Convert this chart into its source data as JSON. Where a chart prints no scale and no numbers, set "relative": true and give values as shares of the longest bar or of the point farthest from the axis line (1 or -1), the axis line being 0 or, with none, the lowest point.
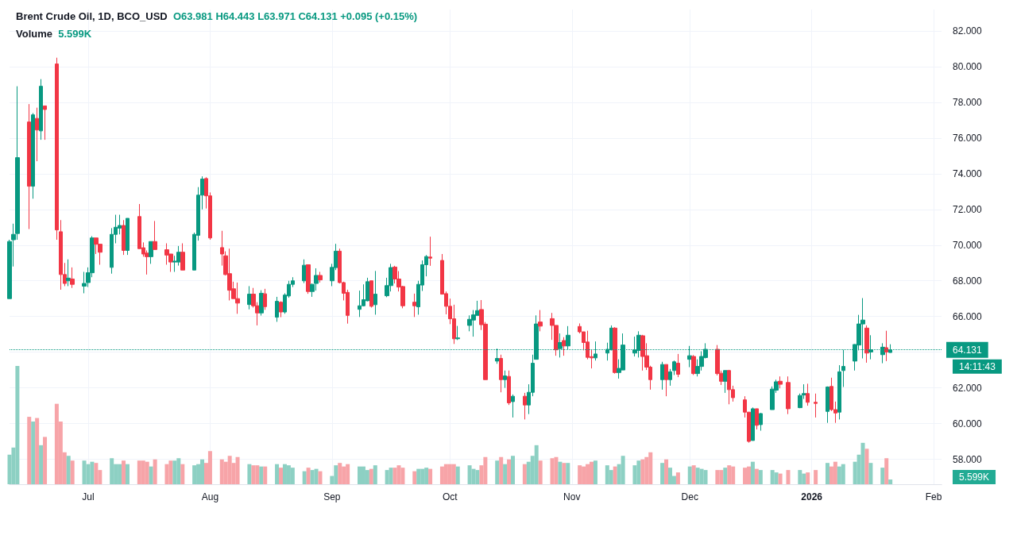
{
  "chart_data": [
    {
      "type": "candlestick",
      "title": "Brent Crude Oil, 1D, BCO_USD",
      "subtitle": "O63.981 H64.443 L63.971 C64.131 +0.095 (+0.15%)",
      "x": [
        "2025-06-11",
        "2025-06-12",
        "2025-06-13",
        "2025-06-16",
        "2025-06-17",
        "2025-06-18",
        "2025-06-19",
        "2025-06-20",
        "2025-06-23",
        "2025-06-24",
        "2025-06-25",
        "2025-06-26",
        "2025-06-27",
        "2025-06-30",
        "2025-07-01",
        "2025-07-02",
        "2025-07-03",
        "2025-07-04",
        "2025-07-07",
        "2025-07-08",
        "2025-07-09",
        "2025-07-10",
        "2025-07-11",
        "2025-07-14",
        "2025-07-15",
        "2025-07-16",
        "2025-07-17",
        "2025-07-18",
        "2025-07-21",
        "2025-07-22",
        "2025-07-23",
        "2025-07-24",
        "2025-07-25",
        "2025-07-28",
        "2025-07-29",
        "2025-07-30",
        "2025-07-31",
        "2025-08-01",
        "2025-08-04",
        "2025-08-05",
        "2025-08-06",
        "2025-08-07",
        "2025-08-08",
        "2025-08-11",
        "2025-08-12",
        "2025-08-13",
        "2025-08-14",
        "2025-08-15",
        "2025-08-18",
        "2025-08-19",
        "2025-08-20",
        "2025-08-21",
        "2025-08-22",
        "2025-08-25",
        "2025-08-26",
        "2025-08-27",
        "2025-08-28",
        "2025-08-29",
        "2025-09-01",
        "2025-09-02",
        "2025-09-03",
        "2025-09-04",
        "2025-09-05",
        "2025-09-08",
        "2025-09-09",
        "2025-09-10",
        "2025-09-11",
        "2025-09-12",
        "2025-09-15",
        "2025-09-16",
        "2025-09-17",
        "2025-09-18",
        "2025-09-19",
        "2025-09-22",
        "2025-09-23",
        "2025-09-24",
        "2025-09-25",
        "2025-09-26",
        "2025-09-29",
        "2025-09-30",
        "2025-10-01",
        "2025-10-02",
        "2025-10-03",
        "2025-10-06",
        "2025-10-07",
        "2025-10-08",
        "2025-10-09",
        "2025-10-10",
        "2025-10-13",
        "2025-10-14",
        "2025-10-15",
        "2025-10-16",
        "2025-10-17",
        "2025-10-20",
        "2025-10-21",
        "2025-10-22",
        "2025-10-23",
        "2025-10-24",
        "2025-10-27",
        "2025-10-28",
        "2025-10-29",
        "2025-10-30",
        "2025-10-31",
        "2025-11-03",
        "2025-11-04",
        "2025-11-05",
        "2025-11-06",
        "2025-11-07",
        "2025-11-10",
        "2025-11-11",
        "2025-11-12",
        "2025-11-13",
        "2025-11-14",
        "2025-11-17",
        "2025-11-18",
        "2025-11-19",
        "2025-11-20",
        "2025-11-21",
        "2025-11-24",
        "2025-11-25",
        "2025-11-26",
        "2025-11-27",
        "2025-11-28",
        "2025-12-01",
        "2025-12-02",
        "2025-12-03",
        "2025-12-04",
        "2025-12-05",
        "2025-12-08",
        "2025-12-09",
        "2025-12-10",
        "2025-12-11",
        "2025-12-12",
        "2025-12-15",
        "2025-12-16",
        "2025-12-17",
        "2025-12-18",
        "2025-12-19",
        "2025-12-22",
        "2025-12-23",
        "2025-12-24",
        "2025-12-26",
        "2025-12-29",
        "2025-12-30",
        "2025-12-31",
        "2026-01-02",
        "2026-01-05",
        "2026-01-06",
        "2026-01-07",
        "2026-01-08",
        "2026-01-09",
        "2026-01-12",
        "2026-01-13",
        "2026-01-14",
        "2026-01-15",
        "2026-01-16",
        "2026-01-19",
        "2026-01-20",
        "2026-01-21"
      ],
      "ohlc": [
        [
          67.0,
          70.3,
          67.0,
          70.2
        ],
        [
          70.3,
          71.2,
          68.8,
          70.6
        ],
        [
          70.65,
          78.9,
          70.3,
          74.9
        ],
        [
          76.9,
          77.9,
          70.9,
          73.3
        ],
        [
          73.3,
          77.4,
          72.6,
          77.3
        ],
        [
          77.1,
          77.7,
          74.7,
          76.45
        ],
        [
          76.4,
          79.3,
          75.9,
          78.9
        ],
        [
          77.8,
          77.8,
          75.9,
          77.6
        ],
        [
          80.15,
          80.5,
          70.3,
          70.85
        ],
        [
          70.75,
          71.4,
          67.5,
          68.35
        ],
        [
          68.35,
          69.0,
          67.7,
          67.85
        ],
        [
          68.0,
          69.2,
          67.7,
          68.15
        ],
        [
          68.1,
          68.75,
          67.6,
          67.8
        ],
        [
          67.7,
          68.5,
          67.3,
          67.85
        ],
        [
          67.9,
          68.75,
          67.65,
          68.45
        ],
        [
          68.45,
          70.5,
          68.2,
          70.4
        ],
        [
          70.4,
          70.4,
          69.5,
          70.05
        ],
        [
          70.05,
          70.05,
          68.9,
          69.6
        ],
        [
          68.75,
          70.95,
          68.4,
          70.6
        ],
        [
          70.6,
          71.7,
          70.1,
          71.0
        ],
        [
          70.95,
          71.7,
          70.6,
          71.1
        ],
        [
          71.1,
          71.4,
          69.45,
          69.7
        ],
        [
          69.7,
          71.5,
          69.45,
          71.5
        ],
        [
          71.6,
          72.3,
          69.8,
          69.8
        ],
        [
          69.85,
          70.15,
          69.35,
          69.5
        ],
        [
          69.55,
          69.7,
          68.35,
          69.35
        ],
        [
          69.35,
          70.2,
          68.95,
          70.2
        ],
        [
          70.2,
          71.35,
          69.75,
          69.75
        ],
        [
          69.74,
          70.1,
          68.9,
          69.44
        ],
        [
          69.5,
          69.5,
          68.5,
          69.05
        ],
        [
          69.05,
          69.4,
          68.5,
          69.1
        ],
        [
          69.05,
          69.95,
          68.85,
          69.6
        ],
        [
          69.6,
          70.1,
          68.6,
          68.6
        ],
        [
          68.6,
          70.7,
          68.6,
          70.6
        ],
        [
          70.55,
          73.25,
          70.25,
          72.8
        ],
        [
          72.8,
          73.85,
          72.0,
          73.7
        ],
        [
          73.73,
          73.8,
          72.05,
          72.76
        ],
        [
          72.76,
          72.95,
          70.3,
          70.4
        ],
        [
          69.86,
          70.8,
          68.85,
          69.5
        ],
        [
          69.4,
          69.65,
          68.3,
          68.35
        ],
        [
          68.4,
          69.8,
          66.9,
          67.47
        ],
        [
          67.55,
          67.95,
          67.0,
          67.0
        ],
        [
          67.0,
          67.9,
          66.15,
          66.75
        ],
        [
          66.67,
          67.7,
          66.4,
          67.25
        ],
        [
          67.25,
          67.6,
          66.5,
          66.6
        ],
        [
          66.6,
          66.8,
          65.5,
          66.2
        ],
        [
          66.2,
          67.47,
          66.05,
          67.3
        ],
        [
          67.27,
          67.55,
          66.37,
          66.55
        ],
        [
          65.96,
          67.1,
          65.7,
          66.85
        ],
        [
          66.8,
          66.85,
          65.96,
          66.25
        ],
        [
          66.25,
          67.3,
          66.15,
          67.2
        ],
        [
          67.15,
          68.0,
          67.05,
          67.8
        ],
        [
          67.8,
          68.2,
          67.65,
          68.0
        ],
        [
          68.0,
          69.2,
          67.87,
          68.87
        ],
        [
          68.9,
          68.9,
          67.27,
          67.4
        ],
        [
          67.4,
          67.85,
          67.1,
          67.8
        ],
        [
          67.85,
          68.7,
          67.45,
          68.3
        ],
        [
          68.3,
          68.5,
          67.9,
          68.05
        ],
        [
          68.0,
          68.95,
          67.7,
          68.75
        ],
        [
          68.74,
          70.07,
          68.6,
          69.66
        ],
        [
          69.66,
          69.8,
          67.85,
          67.9
        ],
        [
          67.9,
          67.95,
          66.9,
          67.3
        ],
        [
          67.35,
          67.5,
          65.6,
          66.06
        ],
        [
          66.4,
          67.45,
          65.97,
          66.6
        ],
        [
          66.6,
          67.8,
          66.57,
          66.94
        ],
        [
          66.88,
          68.17,
          66.85,
          67.95
        ],
        [
          68.0,
          68.0,
          66.5,
          66.57
        ],
        [
          66.66,
          68.55,
          66.1,
          67.25
        ],
        [
          67.16,
          68.17,
          67.08,
          67.73
        ],
        [
          67.73,
          68.95,
          67.4,
          68.74
        ],
        [
          68.77,
          68.84,
          67.85,
          68.1
        ],
        [
          68.1,
          68.54,
          67.4,
          67.65
        ],
        [
          67.68,
          67.72,
          66.46,
          66.6
        ],
        [
          66.8,
          67.28,
          65.97,
          66.6
        ],
        [
          66.54,
          68.0,
          66.1,
          67.8
        ],
        [
          67.76,
          69.14,
          67.43,
          68.9
        ],
        [
          68.9,
          69.44,
          68.25,
          69.36
        ],
        [
          69.33,
          70.47,
          68.84,
          69.27
        ],
        [
          69.14,
          69.5,
          67.25,
          67.25
        ],
        [
          67.28,
          67.4,
          66.12,
          66.57
        ],
        [
          66.57,
          67.0,
          65.57,
          65.87
        ],
        [
          65.87,
          66.66,
          64.46,
          64.75
        ],
        [
          64.75,
          65.47,
          64.68,
          64.8
        ],
        [
          65.5,
          66.06,
          65.17,
          65.84
        ],
        [
          65.8,
          66.36,
          64.87,
          66.09
        ],
        [
          66.06,
          66.88,
          66.06,
          66.33
        ],
        [
          66.39,
          66.92,
          65.24,
          65.54
        ],
        [
          65.57,
          65.69,
          62.46,
          62.46
        ],
        [
          63.5,
          64.2,
          63.35,
          63.65
        ],
        [
          63.65,
          63.86,
          61.75,
          62.46
        ],
        [
          62.46,
          62.97,
          62.0,
          62.67
        ],
        [
          62.64,
          62.97,
          61.04,
          61.16
        ],
        [
          61.23,
          61.63,
          60.34,
          61.53
        ],
        [
          61.53,
          61.72,
          60.23,
          61.04
        ],
        [
          61.04,
          62.2,
          60.53,
          61.75
        ],
        [
          61.75,
          63.86,
          61.53,
          63.38
        ],
        [
          63.6,
          66.06,
          63.6,
          65.58
        ],
        [
          65.69,
          66.36,
          65.17,
          65.46
        ],
        [
          65.88,
          66.2,
          64.69,
          65.5
        ],
        [
          65.5,
          65.5,
          63.8,
          64.13
        ],
        [
          64.2,
          65.05,
          63.7,
          64.54
        ],
        [
          64.65,
          64.84,
          63.8,
          64.35
        ],
        [
          64.35,
          65.46,
          64.13,
          64.95
        ],
        [
          65.44,
          65.61,
          65.05,
          65.14
        ],
        [
          65.14,
          65.14,
          64.1,
          64.54
        ],
        [
          64.57,
          65.2,
          63.6,
          63.71
        ],
        [
          63.75,
          64.13,
          63.09,
          63.68
        ],
        [
          63.68,
          64.6,
          63.53,
          63.9
        ],
        [
          63.95,
          64.53,
          63.53,
          64.16
        ],
        [
          64.13,
          65.5,
          64.1,
          65.35
        ],
        [
          65.35,
          65.4,
          62.8,
          62.86
        ],
        [
          62.86,
          63.6,
          62.52,
          63.09
        ],
        [
          63.0,
          65.05,
          63.0,
          64.4
        ],
        [
          63.95,
          64.87,
          63.76,
          64.13
        ],
        [
          64.1,
          65.17,
          63.7,
          64.95
        ],
        [
          64.92,
          64.97,
          62.97,
          63.76
        ],
        [
          63.8,
          64.5,
          63.0,
          63.16
        ],
        [
          63.16,
          63.24,
          61.9,
          62.46
        ],
        [
          62.46,
          63.46,
          61.9,
          63.31
        ],
        [
          63.31,
          63.31,
          61.53,
          62.46
        ],
        [
          62.46,
          63.06,
          62.12,
          62.9
        ],
        [
          62.97,
          63.53,
          62.72,
          63.46
        ],
        [
          63.38,
          63.9,
          62.6,
          62.76
        ],
        [
          63.6,
          64.35,
          63.16,
          63.8
        ],
        [
          63.76,
          63.84,
          62.72,
          62.8
        ],
        [
          62.8,
          63.6,
          62.64,
          63.2
        ],
        [
          63.2,
          64.05,
          62.97,
          63.76
        ],
        [
          63.7,
          64.5,
          63.65,
          64.16
        ],
        [
          64.16,
          64.4,
          62.7,
          62.8
        ],
        [
          62.82,
          62.97,
          62.16,
          62.37
        ],
        [
          62.37,
          62.97,
          61.72,
          62.97
        ],
        [
          62.97,
          63.01,
          61.08,
          61.9
        ],
        [
          61.9,
          62.12,
          61.23,
          61.45
        ],
        [
          61.33,
          61.53,
          60.34,
          60.64
        ],
        [
          60.64,
          60.64,
          58.93,
          59.0
        ],
        [
          59.05,
          60.9,
          59.05,
          60.83
        ],
        [
          60.83,
          60.83,
          59.67,
          59.9
        ],
        [
          59.94,
          60.59,
          59.6,
          60.56
        ],
        [
          60.78,
          62.08,
          60.78,
          61.93
        ],
        [
          61.87,
          62.46,
          61.72,
          62.34
        ],
        [
          62.37,
          62.64,
          61.97,
          62.2
        ],
        [
          62.3,
          62.64,
          60.53,
          60.83
        ],
        [
          60.89,
          61.68,
          60.86,
          61.57
        ],
        [
          61.6,
          62.2,
          61.38,
          61.68
        ],
        [
          61.68,
          62.23,
          61.0,
          61.19
        ],
        [
          61.19,
          61.68,
          60.34,
          61.13
        ],
        [
          60.68,
          62.08,
          60.04,
          62.05
        ],
        [
          62.08,
          62.57,
          60.7,
          60.78
        ],
        [
          60.78,
          61.23,
          60.04,
          60.59
        ],
        [
          60.64,
          63.27,
          60.23,
          62.9
        ],
        [
          62.97,
          64.13,
          62.05,
          63.2
        ],
        [
          63.5,
          64.45,
          62.97,
          64.43
        ],
        [
          64.4,
          66.09,
          64.1,
          65.58
        ],
        [
          65.58,
          67.03,
          63.65,
          65.8
        ],
        [
          65.35,
          65.5,
          63.41,
          63.95
        ],
        [
          64.01,
          64.95,
          63.6,
          64.13
        ],
        [
          63.86,
          64.5,
          63.38,
          64.28
        ],
        [
          64.25,
          65.2,
          63.5,
          64.01
        ],
        [
          63.981,
          64.443,
          63.971,
          64.131
        ]
      ],
      "colors": [
        "#089981",
        "#089981",
        "#089981",
        "#f23645",
        "#089981",
        "#f23645",
        "#089981",
        "#f23645",
        "#f23645",
        "#f23645",
        "#f23645",
        "#089981",
        "#f23645",
        "#089981",
        "#089981",
        "#089981",
        "#f23645",
        "#f23645",
        "#089981",
        "#089981",
        "#089981",
        "#f23645",
        "#089981",
        "#f23645",
        "#f23645",
        "#f23645",
        "#089981",
        "#f23645",
        "#f23645",
        "#f23645",
        "#089981",
        "#089981",
        "#f23645",
        "#089981",
        "#089981",
        "#089981",
        "#f23645",
        "#f23645",
        "#f23645",
        "#f23645",
        "#f23645",
        "#f23645",
        "#f23645",
        "#089981",
        "#f23645",
        "#f23645",
        "#089981",
        "#f23645",
        "#089981",
        "#f23645",
        "#089981",
        "#089981",
        "#089981",
        "#089981",
        "#f23645",
        "#089981",
        "#089981",
        "#f23645",
        "#089981",
        "#089981",
        "#f23645",
        "#f23645",
        "#f23645",
        "#089981",
        "#089981",
        "#089981",
        "#f23645",
        "#089981",
        "#089981",
        "#089981",
        "#f23645",
        "#f23645",
        "#f23645",
        "#f23645",
        "#089981",
        "#089981",
        "#089981",
        "#f23645",
        "#f23645",
        "#f23645",
        "#f23645",
        "#f23645",
        "#089981",
        "#089981",
        "#089981",
        "#089981",
        "#f23645",
        "#f23645",
        "#089981",
        "#f23645",
        "#089981",
        "#f23645",
        "#089981",
        "#f23645",
        "#089981",
        "#089981",
        "#089981",
        "#f23645",
        "#f23645",
        "#f23645",
        "#089981",
        "#f23645",
        "#089981",
        "#f23645",
        "#f23645",
        "#f23645",
        "#f23645",
        "#089981",
        "#089981",
        "#089981",
        "#f23645",
        "#089981",
        "#089981",
        "#089981",
        "#089981",
        "#f23645",
        "#f23645",
        "#f23645",
        "#089981",
        "#f23645",
        "#089981",
        "#089981",
        "#f23645",
        "#089981",
        "#f23645",
        "#089981",
        "#089981",
        "#089981",
        "#f23645",
        "#f23645",
        "#089981",
        "#f23645",
        "#f23645",
        "#f23645",
        "#f23645",
        "#089981",
        "#f23645",
        "#089981",
        "#089981",
        "#089981",
        "#f23645",
        "#f23645",
        "#089981",
        "#089981",
        "#f23645",
        "#f23645",
        "#089981",
        "#f23645",
        "#f23645",
        "#089981",
        "#089981",
        "#089981",
        "#089981",
        "#089981",
        "#f23645",
        "#089981",
        "#089981",
        "#f23645",
        "#089981"
      ],
      "xlim": [
        "2025-06-11",
        "2026-02-03"
      ],
      "xticks": [
        {
          "value": "2025-07-01",
          "label": "Jul"
        },
        {
          "value": "2025-08-01",
          "label": "Aug"
        },
        {
          "value": "2025-09-01",
          "label": "Sep"
        },
        {
          "value": "2025-10-01",
          "label": "Oct"
        },
        {
          "value": "2025-11-01",
          "label": "Nov"
        },
        {
          "value": "2025-12-01",
          "label": "Dec"
        },
        {
          "value": "2026-01-01",
          "label": "2026"
        },
        {
          "value": "2026-02-01",
          "label": "Feb"
        }
      ],
      "ylim": [
        56.6,
        83.2
      ],
      "yticks": [
        {
          "value": 58,
          "label": "58.000"
        },
        {
          "value": 60,
          "label": "60.000"
        },
        {
          "value": 62,
          "label": "62.000"
        },
        {
          "value": 64,
          "label": null
        },
        {
          "value": 66,
          "label": "66.000"
        },
        {
          "value": 68,
          "label": "68.000"
        },
        {
          "value": 70,
          "label": "70.000"
        },
        {
          "value": 72,
          "label": "72.000"
        },
        {
          "value": 74,
          "label": "74.000"
        },
        {
          "value": 76,
          "label": "76.000"
        },
        {
          "value": 78,
          "label": "78.000"
        },
        {
          "value": 80,
          "label": "80.000"
        },
        {
          "value": 82,
          "label": "82.000"
        }
      ],
      "ref_lines": [
        {
          "axis": "y",
          "value": 64.131,
          "label": "64.131",
          "color": "#089981",
          "line_style": "dotted"
        }
      ],
      "annotations": [
        "14:11:43"
      ],
      "grid": true
    },
    {
      "type": "bar",
      "title": "Volume",
      "subtitle": "5.599K",
      "relative": true,
      "annotations": [
        "5.599K"
      ],
      "x": [
        "2025-06-11",
        "2025-06-12",
        "2025-06-13",
        "2025-06-16",
        "2025-06-17",
        "2025-06-18",
        "2025-06-19",
        "2025-06-20",
        "2025-06-23",
        "2025-06-24",
        "2025-06-25",
        "2025-06-26",
        "2025-06-27",
        "2025-06-30",
        "2025-07-01",
        "2025-07-02",
        "2025-07-03",
        "2025-07-04",
        "2025-07-07",
        "2025-07-08",
        "2025-07-09",
        "2025-07-10",
        "2025-07-11",
        "2025-07-14",
        "2025-07-15",
        "2025-07-16",
        "2025-07-17",
        "2025-07-18",
        "2025-07-21",
        "2025-07-22",
        "2025-07-23",
        "2025-07-24",
        "2025-07-25",
        "2025-07-28",
        "2025-07-29",
        "2025-07-30",
        "2025-07-31",
        "2025-08-01",
        "2025-08-04",
        "2025-08-05",
        "2025-08-06",
        "2025-08-07",
        "2025-08-08",
        "2025-08-11",
        "2025-08-12",
        "2025-08-13",
        "2025-08-14",
        "2025-08-15",
        "2025-08-18",
        "2025-08-19",
        "2025-08-20",
        "2025-08-21",
        "2025-08-22",
        "2025-08-25",
        "2025-08-26",
        "2025-08-27",
        "2025-08-28",
        "2025-08-29",
        "2025-09-01",
        "2025-09-02",
        "2025-09-03",
        "2025-09-04",
        "2025-09-05",
        "2025-09-08",
        "2025-09-09",
        "2025-09-10",
        "2025-09-11",
        "2025-09-12",
        "2025-09-15",
        "2025-09-16",
        "2025-09-17",
        "2025-09-18",
        "2025-09-19",
        "2025-09-22",
        "2025-09-23",
        "2025-09-24",
        "2025-09-25",
        "2025-09-26",
        "2025-09-29",
        "2025-09-30",
        "2025-10-01",
        "2025-10-02",
        "2025-10-03",
        "2025-10-06",
        "2025-10-07",
        "2025-10-08",
        "2025-10-09",
        "2025-10-10",
        "2025-10-13",
        "2025-10-14",
        "2025-10-15",
        "2025-10-16",
        "2025-10-17",
        "2025-10-20",
        "2025-10-21",
        "2025-10-22",
        "2025-10-23",
        "2025-10-24",
        "2025-10-27",
        "2025-10-28",
        "2025-10-29",
        "2025-10-30",
        "2025-10-31",
        "2025-11-03",
        "2025-11-04",
        "2025-11-05",
        "2025-11-06",
        "2025-11-07",
        "2025-11-10",
        "2025-11-11",
        "2025-11-12",
        "2025-11-13",
        "2025-11-14",
        "2025-11-17",
        "2025-11-18",
        "2025-11-19",
        "2025-11-20",
        "2025-11-21",
        "2025-11-24",
        "2025-11-25",
        "2025-11-26",
        "2025-11-27",
        "2025-11-28",
        "2025-12-01",
        "2025-12-02",
        "2025-12-03",
        "2025-12-04",
        "2025-12-05",
        "2025-12-08",
        "2025-12-09",
        "2025-12-10",
        "2025-12-11",
        "2025-12-12",
        "2025-12-15",
        "2025-12-16",
        "2025-12-17",
        "2025-12-18",
        "2025-12-19",
        "2025-12-22",
        "2025-12-23",
        "2025-12-24",
        "2025-12-26",
        "2025-12-29",
        "2025-12-30",
        "2025-12-31",
        "2026-01-02",
        "2026-01-05",
        "2026-01-06",
        "2026-01-07",
        "2026-01-08",
        "2026-01-09",
        "2026-01-12",
        "2026-01-13",
        "2026-01-14",
        "2026-01-15",
        "2026-01-16",
        "2026-01-19",
        "2026-01-20",
        "2026-01-21"
      ],
      "xlim": [
        "2025-06-11",
        "2026-02-03"
      ],
      "values": [
        0.25,
        0.31,
        1,
        0.57,
        0.53,
        0.56,
        0.33,
        0.4,
        0.68,
        0.53,
        0.27,
        0.24,
        0.2,
        0.2,
        0.17,
        0.19,
        0.18,
        0.12,
        0.22,
        0.17,
        0.17,
        0.2,
        0.17,
        0.2,
        0.2,
        0.19,
        0.15,
        0.21,
        0.17,
        0.2,
        0.2,
        0.22,
        0.17,
        0.16,
        0.17,
        0.21,
        0.18,
        0.28,
        0.21,
        0.19,
        0.24,
        0.18,
        0.23,
        0.17,
        0.16,
        0.16,
        0.15,
        0.15,
        0.17,
        0.14,
        0.17,
        0.16,
        0.14,
        0.11,
        0.14,
        0.12,
        0.13,
        0.11,
        0.07,
        0.16,
        0.18,
        0.15,
        0.17,
        0.15,
        0.15,
        0.12,
        0.13,
        0.16,
        0.12,
        0.14,
        0.14,
        0.16,
        0.14,
        0.11,
        0.13,
        0.13,
        0.14,
        0.13,
        0.15,
        0.17,
        0.17,
        0.17,
        0.15,
        0.16,
        0.13,
        0.12,
        0.16,
        0.23,
        0.2,
        0.23,
        0.17,
        0.21,
        0.24,
        0.17,
        0.19,
        0.24,
        0.33,
        0.2,
        0.22,
        0.23,
        0.19,
        0.18,
        0.18,
        0.16,
        0.15,
        0.17,
        0.19,
        0.2,
        0.16,
        0.12,
        0.15,
        0.17,
        0.24,
        0.16,
        0.2,
        0.21,
        0.23,
        0.27,
        0.18,
        0.21,
        0.14,
        0.07,
        0.1,
        0.15,
        0.16,
        0.14,
        0.13,
        0.12,
        0.12,
        0.12,
        0.14,
        0.16,
        0.15,
        0.14,
        0.15,
        0.19,
        0.13,
        0.12,
        0.12,
        0.1,
        0.09,
        0.12,
        0.12,
        0.09,
        0.1,
        0.12,
        0.18,
        0.15,
        0.19,
        0.15,
        0.17,
        0.19,
        0.25,
        0.35,
        0.3,
        0.18,
        0.14,
        0.22,
        0.04
      ],
      "colors": [
        "#8dd0c3",
        "#8dd0c3",
        "#8dd0c3",
        "#f7a4a8",
        "#8dd0c3",
        "#f7a4a8",
        "#8dd0c3",
        "#f7a4a8",
        "#f7a4a8",
        "#f7a4a8",
        "#f7a4a8",
        "#8dd0c3",
        "#f7a4a8",
        "#8dd0c3",
        "#8dd0c3",
        "#8dd0c3",
        "#f7a4a8",
        "#f7a4a8",
        "#8dd0c3",
        "#8dd0c3",
        "#8dd0c3",
        "#f7a4a8",
        "#8dd0c3",
        "#f7a4a8",
        "#f7a4a8",
        "#f7a4a8",
        "#8dd0c3",
        "#f7a4a8",
        "#f7a4a8",
        "#f7a4a8",
        "#8dd0c3",
        "#8dd0c3",
        "#f7a4a8",
        "#8dd0c3",
        "#8dd0c3",
        "#8dd0c3",
        "#f7a4a8",
        "#f7a4a8",
        "#f7a4a8",
        "#f7a4a8",
        "#f7a4a8",
        "#f7a4a8",
        "#f7a4a8",
        "#8dd0c3",
        "#f7a4a8",
        "#f7a4a8",
        "#8dd0c3",
        "#f7a4a8",
        "#8dd0c3",
        "#f7a4a8",
        "#8dd0c3",
        "#8dd0c3",
        "#8dd0c3",
        "#8dd0c3",
        "#f7a4a8",
        "#8dd0c3",
        "#8dd0c3",
        "#f7a4a8",
        "#8dd0c3",
        "#8dd0c3",
        "#f7a4a8",
        "#f7a4a8",
        "#f7a4a8",
        "#8dd0c3",
        "#8dd0c3",
        "#8dd0c3",
        "#f7a4a8",
        "#8dd0c3",
        "#8dd0c3",
        "#8dd0c3",
        "#f7a4a8",
        "#f7a4a8",
        "#f7a4a8",
        "#f7a4a8",
        "#8dd0c3",
        "#8dd0c3",
        "#8dd0c3",
        "#f7a4a8",
        "#f7a4a8",
        "#f7a4a8",
        "#f7a4a8",
        "#f7a4a8",
        "#8dd0c3",
        "#8dd0c3",
        "#8dd0c3",
        "#8dd0c3",
        "#f7a4a8",
        "#f7a4a8",
        "#8dd0c3",
        "#f7a4a8",
        "#8dd0c3",
        "#f7a4a8",
        "#8dd0c3",
        "#f7a4a8",
        "#8dd0c3",
        "#8dd0c3",
        "#8dd0c3",
        "#f7a4a8",
        "#f7a4a8",
        "#f7a4a8",
        "#8dd0c3",
        "#f7a4a8",
        "#8dd0c3",
        "#f7a4a8",
        "#f7a4a8",
        "#f7a4a8",
        "#f7a4a8",
        "#8dd0c3",
        "#8dd0c3",
        "#8dd0c3",
        "#f7a4a8",
        "#8dd0c3",
        "#8dd0c3",
        "#8dd0c3",
        "#8dd0c3",
        "#f7a4a8",
        "#f7a4a8",
        "#f7a4a8",
        "#8dd0c3",
        "#f7a4a8",
        "#8dd0c3",
        "#8dd0c3",
        "#f7a4a8",
        "#8dd0c3",
        "#f7a4a8",
        "#8dd0c3",
        "#8dd0c3",
        "#8dd0c3",
        "#f7a4a8",
        "#f7a4a8",
        "#8dd0c3",
        "#f7a4a8",
        "#f7a4a8",
        "#f7a4a8",
        "#f7a4a8",
        "#8dd0c3",
        "#f7a4a8",
        "#8dd0c3",
        "#8dd0c3",
        "#8dd0c3",
        "#f7a4a8",
        "#f7a4a8",
        "#8dd0c3",
        "#8dd0c3",
        "#f7a4a8",
        "#f7a4a8",
        "#8dd0c3",
        "#f7a4a8",
        "#f7a4a8",
        "#8dd0c3",
        "#8dd0c3",
        "#8dd0c3",
        "#8dd0c3",
        "#8dd0c3",
        "#f7a4a8",
        "#8dd0c3",
        "#8dd0c3",
        "#f7a4a8",
        "#8dd0c3"
      ],
      "grid": false
    }
  ]
}
